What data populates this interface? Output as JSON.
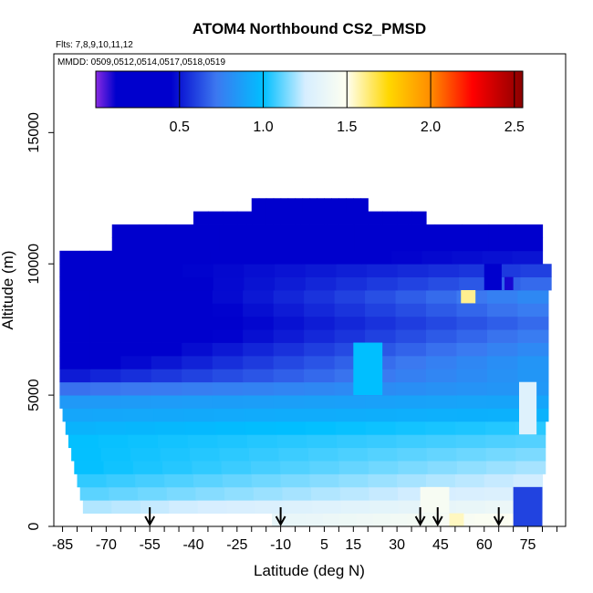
{
  "chart_data": {
    "type": "heatmap",
    "title": "ATOM4 Northbound CS2_PMSD",
    "flights_label": "Flts: 7,8,9,10,11,12",
    "dates_label": "MMDD: 0509,0512,0514,0517,0518,0519",
    "xlabel": "Latitude (deg N)",
    "ylabel": "Altitude (m)",
    "xlim": [
      -88,
      88
    ],
    "ylim": [
      0,
      18000
    ],
    "x_ticks": [
      -85,
      -80,
      -75,
      -70,
      -65,
      -60,
      -55,
      -50,
      -45,
      -40,
      -35,
      -30,
      -25,
      -20,
      -15,
      -10,
      -5,
      0,
      5,
      10,
      15,
      20,
      25,
      30,
      35,
      40,
      45,
      50,
      55,
      60,
      65,
      70,
      75,
      80,
      85
    ],
    "x_tick_labels": [
      {
        "value": -85,
        "label": "-85"
      },
      {
        "value": -70,
        "label": "-70"
      },
      {
        "value": -55,
        "label": "-55"
      },
      {
        "value": -40,
        "label": "-40"
      },
      {
        "value": -25,
        "label": "-25"
      },
      {
        "value": -10,
        "label": "-10"
      },
      {
        "value": 5,
        "label": "5"
      },
      {
        "value": 15,
        "label": "15"
      },
      {
        "value": 30,
        "label": "30"
      },
      {
        "value": 45,
        "label": "45"
      },
      {
        "value": 60,
        "label": "60"
      },
      {
        "value": 75,
        "label": "75"
      }
    ],
    "y_ticks": [
      {
        "value": 0,
        "label": "0"
      },
      {
        "value": 5000,
        "label": "5000"
      },
      {
        "value": 10000,
        "label": "10000"
      },
      {
        "value": 15000,
        "label": "15000"
      }
    ],
    "colorbar": {
      "range": [
        0,
        2.55
      ],
      "tick_values": [
        0.5,
        1.0,
        1.5,
        2.0,
        2.5
      ],
      "tick_labels": [
        "0.5",
        "1.0",
        "1.5",
        "2.0",
        "2.5"
      ],
      "stops": [
        {
          "value": 0.0,
          "color": "#8a2be2"
        },
        {
          "value": 0.12,
          "color": "#0000cd"
        },
        {
          "value": 0.45,
          "color": "#0000cd"
        },
        {
          "value": 0.72,
          "color": "#3c78f0"
        },
        {
          "value": 1.0,
          "color": "#00bfff"
        },
        {
          "value": 1.25,
          "color": "#d6eeff"
        },
        {
          "value": 1.5,
          "color": "#fffff0"
        },
        {
          "value": 1.75,
          "color": "#ffd700"
        },
        {
          "value": 2.0,
          "color": "#ff8c00"
        },
        {
          "value": 2.25,
          "color": "#ff0000"
        },
        {
          "value": 2.55,
          "color": "#8b0000"
        }
      ]
    },
    "arrows_latitude": [
      -55,
      -10,
      38,
      44,
      65
    ],
    "layers": [
      {
        "alt_bottom": 0,
        "alt_top": 500,
        "x_start": -13,
        "x_end": 80,
        "v_start": 1.35,
        "v_end": 1.5
      },
      {
        "alt_bottom": 500,
        "alt_top": 1000,
        "x_start": -78,
        "x_end": 80,
        "v_start": 1.2,
        "v_end": 1.4
      },
      {
        "alt_bottom": 1000,
        "alt_top": 1500,
        "x_start": -79,
        "x_end": 80,
        "v_start": 1.1,
        "v_end": 1.3
      },
      {
        "alt_bottom": 1500,
        "alt_top": 2000,
        "x_start": -80,
        "x_end": 80,
        "v_start": 1.05,
        "v_end": 1.25
      },
      {
        "alt_bottom": 2000,
        "alt_top": 2500,
        "x_start": -81,
        "x_end": 81,
        "v_start": 1.0,
        "v_end": 1.2
      },
      {
        "alt_bottom": 2500,
        "alt_top": 3000,
        "x_start": -82,
        "x_end": 81,
        "v_start": 1.0,
        "v_end": 1.15
      },
      {
        "alt_bottom": 3000,
        "alt_top": 3500,
        "x_start": -83,
        "x_end": 81,
        "v_start": 1.0,
        "v_end": 1.1
      },
      {
        "alt_bottom": 3500,
        "alt_top": 4000,
        "x_start": -84,
        "x_end": 81,
        "v_start": 0.95,
        "v_end": 1.05
      },
      {
        "alt_bottom": 4000,
        "alt_top": 4500,
        "x_start": -85,
        "x_end": 82,
        "v_start": 0.9,
        "v_end": 0.95
      },
      {
        "alt_bottom": 4500,
        "alt_top": 5000,
        "x_start": -86,
        "x_end": 82,
        "v_start": 0.85,
        "v_end": 0.9
      },
      {
        "alt_bottom": 5000,
        "alt_top": 5500,
        "x_start": -86,
        "x_end": 82,
        "v_start": 0.7,
        "v_end": 0.85
      },
      {
        "alt_bottom": 5500,
        "alt_top": 6000,
        "x_start": -86,
        "x_end": 82,
        "v_start": 0.5,
        "v_end": 0.85
      },
      {
        "alt_bottom": 6000,
        "alt_top": 6500,
        "x_start": -86,
        "x_end": 82,
        "v_start": 0.4,
        "v_end": 0.85
      },
      {
        "alt_bottom": 6500,
        "alt_top": 7000,
        "x_start": -86,
        "x_end": 82,
        "v_start": 0.35,
        "v_end": 0.8
      },
      {
        "alt_bottom": 7000,
        "alt_top": 7500,
        "x_start": -86,
        "x_end": 82,
        "v_start": 0.3,
        "v_end": 0.75
      },
      {
        "alt_bottom": 7500,
        "alt_top": 8000,
        "x_start": -86,
        "x_end": 82,
        "v_start": 0.3,
        "v_end": 0.7
      },
      {
        "alt_bottom": 8000,
        "alt_top": 8500,
        "x_start": -86,
        "x_end": 82,
        "v_start": 0.3,
        "v_end": 0.75
      },
      {
        "alt_bottom": 8500,
        "alt_top": 9000,
        "x_start": -86,
        "x_end": 82,
        "v_start": 0.3,
        "v_end": 0.8
      },
      {
        "alt_bottom": 9000,
        "alt_top": 9500,
        "x_start": -86,
        "x_end": 83,
        "v_start": 0.35,
        "v_end": 0.7
      },
      {
        "alt_bottom": 9500,
        "alt_top": 10000,
        "x_start": -86,
        "x_end": 83,
        "v_start": 0.4,
        "v_end": 0.6
      },
      {
        "alt_bottom": 10000,
        "alt_top": 10500,
        "x_start": -86,
        "x_end": 80,
        "v_start": 0.35,
        "v_end": 0.5
      },
      {
        "alt_bottom": 10500,
        "alt_top": 11000,
        "x_start": -68,
        "x_end": 80,
        "v_start": 0.3,
        "v_end": 0.45
      },
      {
        "alt_bottom": 11000,
        "alt_top": 11500,
        "x_start": -68,
        "x_end": 80,
        "v_start": 0.25,
        "v_end": 0.4
      },
      {
        "alt_bottom": 11500,
        "alt_top": 12000,
        "x_start": -40,
        "x_end": 40,
        "v_start": 0.3,
        "v_end": 0.35
      },
      {
        "alt_bottom": 12000,
        "alt_top": 12500,
        "x_start": -20,
        "x_end": 20,
        "v_start": 0.4,
        "v_end": 0.45
      }
    ],
    "patches": [
      {
        "x0": 48,
        "x1": 53,
        "y0": 0,
        "y1": 500,
        "value": 1.55
      },
      {
        "x0": 38,
        "x1": 48,
        "y0": 500,
        "y1": 1500,
        "value": 1.45
      },
      {
        "x0": 52,
        "x1": 57,
        "y0": 8500,
        "y1": 9000,
        "value": 1.6
      },
      {
        "x0": 60,
        "x1": 66,
        "y0": 9000,
        "y1": 10000,
        "value": 0.15
      },
      {
        "x0": 67,
        "x1": 70,
        "y0": 9000,
        "y1": 9500,
        "value": 0.1
      },
      {
        "x0": 15,
        "x1": 25,
        "y0": 5000,
        "y1": 7000,
        "value": 1.0
      },
      {
        "x0": 72,
        "x1": 78,
        "y0": 3500,
        "y1": 5500,
        "value": 1.3
      },
      {
        "x0": 70,
        "x1": 80,
        "y0": 0,
        "y1": 1500,
        "value": 0.6
      }
    ]
  }
}
